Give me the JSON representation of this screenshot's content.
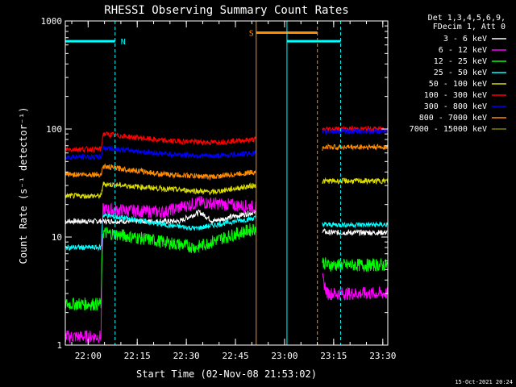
{
  "chart_data": {
    "type": "line",
    "title": "RHESSI Observing Summary Count Rates",
    "xlabel": "Start Time (02-Nov-08 21:53:02)",
    "ylabel": "Count Rate (s⁻¹ detector⁻¹)",
    "yscale": "log",
    "ylim": [
      1,
      1000
    ],
    "xlim_minutes": [
      0,
      98.5
    ],
    "x_tick_labels": [
      "22:00",
      "22:15",
      "22:30",
      "22:45",
      "23:00",
      "23:15",
      "23:30"
    ],
    "x_tick_minutes": [
      6.97,
      21.97,
      36.97,
      51.97,
      66.97,
      81.97,
      96.97
    ],
    "y_tick_labels": [
      "1",
      "10",
      "100",
      "1000"
    ],
    "y_tick_values": [
      1,
      10,
      100,
      1000
    ],
    "legend_position": "top-right",
    "legend_header": [
      "Det 1,3,4,5,6,9,",
      "FDecim 1, Att 0"
    ],
    "timestamp": "15-Oct-2021 20:24",
    "annotations": {
      "flags": [
        {
          "label": "N",
          "color": "#00ffff",
          "start_min": 0,
          "end_min": 15.2,
          "y": 650
        },
        {
          "label": "S",
          "color": "#ff8c00",
          "start_min": 58.3,
          "end_min": 77.0,
          "y": 780
        },
        {
          "label": "",
          "color": "#00ffff",
          "start_min": 67.7,
          "end_min": 84.1,
          "y": 650
        }
      ],
      "vlines": [
        {
          "minute": 15.2,
          "color": "#00ffff",
          "style": "dashed"
        },
        {
          "minute": 58.3,
          "color": "#ff8c00",
          "style": "solid"
        },
        {
          "minute": 67.7,
          "color": "#00ffff",
          "style": "solid"
        },
        {
          "minute": 77.0,
          "color": "#ff8c00",
          "style": "dashed"
        },
        {
          "minute": 84.1,
          "color": "#00ffff",
          "style": "dashed"
        }
      ]
    },
    "gap": [
      58.3,
      78.5
    ],
    "series": [
      {
        "name": "3 - 6 keV",
        "color": "#ffffff",
        "key_points": [
          [
            21.5,
            14
          ],
          [
            35,
            14
          ],
          [
            41,
            17
          ],
          [
            45,
            14
          ],
          [
            58,
            17
          ],
          [
            80,
            11
          ]
        ]
      },
      {
        "name": "6 - 12 keV",
        "color": "#ff00ff",
        "key_points": [
          [
            0,
            1.2
          ],
          [
            11,
            1.2
          ],
          [
            11.5,
            18
          ],
          [
            30,
            17
          ],
          [
            41,
            21
          ],
          [
            58,
            19
          ],
          [
            80,
            3
          ]
        ]
      },
      {
        "name": "12 - 25 keV",
        "color": "#00ff00",
        "key_points": [
          [
            0,
            2.4
          ],
          [
            11,
            2.4
          ],
          [
            11.5,
            11
          ],
          [
            30,
            9
          ],
          [
            40,
            8
          ],
          [
            58,
            12
          ],
          [
            80,
            5.5
          ]
        ]
      },
      {
        "name": "25 - 50 keV",
        "color": "#00ffff",
        "key_points": [
          [
            0,
            8
          ],
          [
            11,
            8
          ],
          [
            11.5,
            16
          ],
          [
            30,
            13
          ],
          [
            40,
            12
          ],
          [
            58,
            15
          ],
          [
            80,
            13
          ]
        ]
      },
      {
        "name": "50 - 100 keV",
        "color": "#dddd00",
        "key_points": [
          [
            0,
            24
          ],
          [
            11,
            24
          ],
          [
            11.5,
            31
          ],
          [
            30,
            28
          ],
          [
            45,
            26
          ],
          [
            58,
            30
          ],
          [
            80,
            33
          ]
        ]
      },
      {
        "name": "100 - 300 keV",
        "color": "#ff0000",
        "key_points": [
          [
            0,
            65
          ],
          [
            11,
            65
          ],
          [
            11.5,
            90
          ],
          [
            30,
            78
          ],
          [
            45,
            75
          ],
          [
            58,
            80
          ],
          [
            80,
            100
          ]
        ]
      },
      {
        "name": "300 - 800 keV",
        "color": "#0000ff",
        "key_points": [
          [
            0,
            55
          ],
          [
            11,
            55
          ],
          [
            11.5,
            67
          ],
          [
            30,
            59
          ],
          [
            45,
            56
          ],
          [
            58,
            60
          ],
          [
            80,
            95
          ]
        ]
      },
      {
        "name": "800 - 7000 keV",
        "color": "#ff8c00",
        "key_points": [
          [
            0,
            38
          ],
          [
            11,
            38
          ],
          [
            11.5,
            45
          ],
          [
            30,
            38
          ],
          [
            45,
            36
          ],
          [
            58,
            40
          ],
          [
            80,
            68
          ]
        ]
      },
      {
        "name": "7000 - 15000 keV",
        "color": "#808000",
        "key_points": [
          [
            0,
            1
          ],
          [
            11,
            1
          ],
          [
            11.5,
            1
          ],
          [
            58,
            1
          ],
          [
            80,
            1
          ]
        ]
      }
    ]
  }
}
